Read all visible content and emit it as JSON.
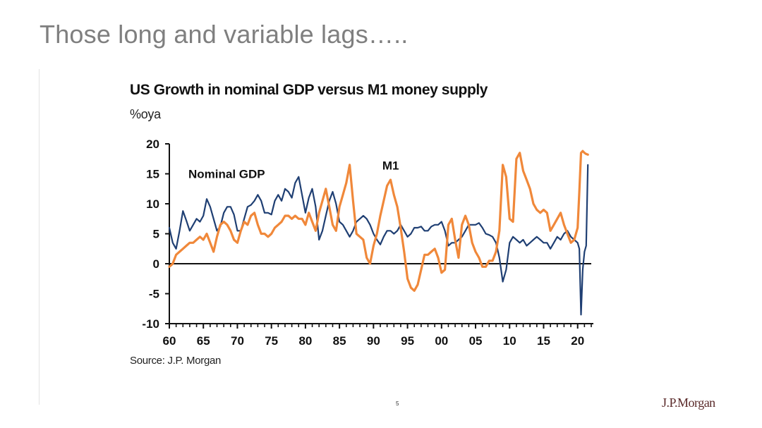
{
  "slide": {
    "title": "Those long and variable lags…..",
    "page_number": "5",
    "logo_text": "J.P.Morgan"
  },
  "chart_data": {
    "type": "line",
    "title": "US Growth in nominal GDP versus M1 money supply",
    "unit_label": "%oya",
    "source": "Source: J.P. Morgan",
    "xlabel": "",
    "ylabel": "",
    "xlim": [
      1960,
      2022
    ],
    "ylim": [
      -10,
      20
    ],
    "y_ticks": [
      "20",
      "15",
      "10",
      "5",
      "0",
      "-5",
      "-10"
    ],
    "x_ticks": [
      "60",
      "65",
      "70",
      "75",
      "80",
      "85",
      "90",
      "95",
      "00",
      "05",
      "10",
      "15",
      "20"
    ],
    "grid": false,
    "series_labels": {
      "nominal_gdp": "Nominal GDP",
      "m1": "M1"
    },
    "colors": {
      "nominal_gdp": "#1f3f73",
      "m1": "#f0883a"
    },
    "series": [
      {
        "name": "Nominal GDP",
        "x": [
          1960.0,
          1960.5,
          1961.0,
          1961.5,
          1962.0,
          1962.5,
          1963.0,
          1963.5,
          1964.0,
          1964.5,
          1965.0,
          1965.5,
          1966.0,
          1966.5,
          1967.0,
          1967.5,
          1968.0,
          1968.5,
          1969.0,
          1969.5,
          1970.0,
          1970.5,
          1971.0,
          1971.5,
          1972.0,
          1972.5,
          1973.0,
          1973.5,
          1974.0,
          1974.5,
          1975.0,
          1975.5,
          1976.0,
          1976.5,
          1977.0,
          1977.5,
          1978.0,
          1978.5,
          1979.0,
          1979.5,
          1980.0,
          1980.5,
          1981.0,
          1981.5,
          1982.0,
          1982.5,
          1983.0,
          1983.5,
          1984.0,
          1984.5,
          1985.0,
          1985.5,
          1986.0,
          1986.5,
          1987.0,
          1987.5,
          1988.0,
          1988.5,
          1989.0,
          1989.5,
          1990.0,
          1990.5,
          1991.0,
          1991.5,
          1992.0,
          1992.5,
          1993.0,
          1993.5,
          1994.0,
          1994.5,
          1995.0,
          1995.5,
          1996.0,
          1996.5,
          1997.0,
          1997.5,
          1998.0,
          1998.5,
          1999.0,
          1999.5,
          2000.0,
          2000.5,
          2001.0,
          2001.5,
          2002.0,
          2002.5,
          2003.0,
          2003.5,
          2004.0,
          2004.5,
          2005.0,
          2005.5,
          2006.0,
          2006.5,
          2007.0,
          2007.5,
          2008.0,
          2008.5,
          2009.0,
          2009.5,
          2010.0,
          2010.5,
          2011.0,
          2011.5,
          2012.0,
          2012.5,
          2013.0,
          2013.5,
          2014.0,
          2014.5,
          2015.0,
          2015.5,
          2016.0,
          2016.5,
          2017.0,
          2017.5,
          2018.0,
          2018.5,
          2019.0,
          2019.5,
          2020.0,
          2020.25,
          2020.5,
          2020.75,
          2021.0,
          2021.25,
          2021.5
        ],
        "values": [
          6.0,
          3.5,
          2.5,
          5.5,
          8.8,
          7.2,
          5.5,
          6.5,
          7.5,
          7.0,
          8.0,
          10.8,
          9.5,
          7.5,
          5.5,
          6.2,
          8.5,
          9.5,
          9.5,
          8.2,
          5.5,
          5.5,
          7.5,
          9.5,
          9.8,
          10.5,
          11.5,
          10.5,
          8.5,
          8.5,
          8.2,
          10.5,
          11.5,
          10.5,
          12.5,
          12.0,
          11.0,
          13.5,
          14.5,
          11.5,
          8.5,
          11.0,
          12.5,
          9.5,
          4.0,
          5.5,
          8.0,
          10.5,
          12.0,
          10.0,
          7.0,
          6.5,
          5.5,
          4.5,
          5.5,
          7.0,
          7.5,
          8.0,
          7.5,
          6.5,
          5.0,
          4.0,
          3.2,
          4.5,
          5.5,
          5.5,
          5.0,
          5.5,
          6.5,
          5.5,
          4.5,
          5.0,
          6.0,
          6.0,
          6.2,
          5.5,
          5.5,
          6.2,
          6.5,
          6.5,
          7.0,
          5.5,
          3.0,
          3.5,
          3.5,
          4.0,
          4.5,
          5.5,
          6.5,
          6.5,
          6.5,
          6.8,
          6.0,
          5.0,
          4.8,
          4.5,
          3.5,
          1.0,
          -3.0,
          -1.0,
          3.5,
          4.5,
          4.0,
          3.5,
          4.0,
          3.0,
          3.5,
          4.0,
          4.5,
          4.0,
          3.5,
          3.5,
          2.5,
          3.5,
          4.5,
          4.0,
          5.0,
          5.5,
          4.5,
          4.0,
          3.5,
          2.5,
          -8.5,
          -1.0,
          2.0,
          3.0,
          16.5
        ]
      },
      {
        "name": "M1",
        "x": [
          1960.0,
          1960.5,
          1961.0,
          1961.5,
          1962.0,
          1962.5,
          1963.0,
          1963.5,
          1964.0,
          1964.5,
          1965.0,
          1965.5,
          1966.0,
          1966.5,
          1967.0,
          1967.5,
          1968.0,
          1968.5,
          1969.0,
          1969.5,
          1970.0,
          1970.5,
          1971.0,
          1971.5,
          1972.0,
          1972.5,
          1973.0,
          1973.5,
          1974.0,
          1974.5,
          1975.0,
          1975.5,
          1976.0,
          1976.5,
          1977.0,
          1977.5,
          1978.0,
          1978.5,
          1979.0,
          1979.5,
          1980.0,
          1980.5,
          1981.0,
          1981.5,
          1982.0,
          1982.5,
          1983.0,
          1983.5,
          1984.0,
          1984.5,
          1985.0,
          1985.5,
          1986.0,
          1986.5,
          1987.0,
          1987.5,
          1988.0,
          1988.5,
          1989.0,
          1989.5,
          1990.0,
          1990.5,
          1991.0,
          1991.5,
          1992.0,
          1992.5,
          1993.0,
          1993.5,
          1994.0,
          1994.5,
          1995.0,
          1995.5,
          1996.0,
          1996.5,
          1997.0,
          1997.5,
          1998.0,
          1998.5,
          1999.0,
          1999.5,
          2000.0,
          2000.5,
          2001.0,
          2001.5,
          2002.0,
          2002.5,
          2003.0,
          2003.5,
          2004.0,
          2004.5,
          2005.0,
          2005.5,
          2006.0,
          2006.5,
          2007.0,
          2007.5,
          2008.0,
          2008.5,
          2009.0,
          2009.5,
          2010.0,
          2010.5,
          2011.0,
          2011.5,
          2012.0,
          2012.5,
          2013.0,
          2013.5,
          2014.0,
          2014.5,
          2015.0,
          2015.5,
          2016.0,
          2016.5,
          2017.0,
          2017.5,
          2018.0,
          2018.5,
          2019.0,
          2019.5,
          2020.0,
          2020.25,
          2020.5,
          2020.75,
          2021.0,
          2021.25,
          2021.5
        ],
        "values": [
          -0.5,
          0.0,
          1.5,
          2.0,
          2.5,
          3.0,
          3.5,
          3.5,
          4.0,
          4.5,
          4.0,
          5.0,
          3.5,
          2.0,
          4.5,
          6.5,
          7.0,
          6.5,
          5.5,
          4.0,
          3.5,
          5.5,
          7.0,
          6.5,
          8.0,
          8.5,
          6.5,
          5.0,
          5.0,
          4.5,
          5.0,
          6.0,
          6.5,
          7.0,
          8.0,
          8.0,
          7.5,
          8.0,
          7.5,
          7.5,
          6.5,
          8.5,
          7.0,
          5.5,
          8.5,
          10.5,
          12.5,
          9.5,
          6.5,
          5.5,
          9.5,
          11.5,
          13.5,
          16.5,
          10.5,
          5.0,
          4.5,
          4.0,
          1.0,
          0.0,
          3.0,
          5.0,
          8.0,
          10.5,
          13.0,
          14.0,
          11.5,
          9.5,
          6.0,
          2.0,
          -2.5,
          -4.0,
          -4.5,
          -3.5,
          -1.0,
          1.5,
          1.5,
          2.0,
          2.5,
          1.0,
          -1.5,
          -1.0,
          6.5,
          7.5,
          4.0,
          1.0,
          6.5,
          8.0,
          6.5,
          3.5,
          2.0,
          1.0,
          -0.5,
          -0.5,
          0.5,
          0.5,
          2.0,
          5.5,
          16.5,
          14.5,
          7.5,
          7.0,
          17.5,
          18.5,
          15.5,
          14.0,
          12.5,
          10.0,
          9.0,
          8.5,
          9.0,
          8.5,
          5.5,
          6.5,
          7.5,
          8.5,
          6.5,
          5.0,
          3.5,
          4.0,
          6.0,
          12.0,
          18.5,
          18.8,
          18.5,
          18.3,
          18.2
        ]
      }
    ]
  }
}
